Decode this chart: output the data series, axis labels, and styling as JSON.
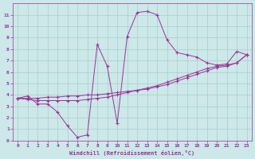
{
  "xlabel": "Windchill (Refroidissement éolien,°C)",
  "background_color": "#cce8e8",
  "grid_color": "#aacccc",
  "line_color": "#993399",
  "xlim": [
    -0.5,
    23.5
  ],
  "ylim": [
    0,
    12
  ],
  "xticks": [
    0,
    1,
    2,
    3,
    4,
    5,
    6,
    7,
    8,
    9,
    10,
    11,
    12,
    13,
    14,
    15,
    16,
    17,
    18,
    19,
    20,
    21,
    22,
    23
  ],
  "yticks": [
    0,
    1,
    2,
    3,
    4,
    5,
    6,
    7,
    8,
    9,
    10,
    11
  ],
  "line1_x": [
    0,
    1,
    2,
    3,
    4,
    5,
    6,
    7,
    8,
    9,
    10,
    11,
    12,
    13,
    14,
    15,
    16,
    17,
    18,
    19,
    20,
    21,
    22,
    23
  ],
  "line1_y": [
    3.7,
    3.9,
    3.2,
    3.2,
    2.5,
    1.3,
    0.3,
    0.5,
    8.4,
    6.5,
    1.5,
    9.1,
    11.2,
    11.3,
    11.0,
    8.8,
    7.7,
    7.5,
    7.3,
    6.8,
    6.6,
    6.7,
    7.8,
    7.5
  ],
  "line2_x": [
    0,
    1,
    2,
    3,
    4,
    5,
    6,
    7,
    8,
    9,
    10,
    11,
    12,
    13,
    14,
    15,
    16,
    17,
    18,
    19,
    20,
    21,
    22,
    23
  ],
  "line2_y": [
    3.7,
    3.7,
    3.7,
    3.8,
    3.8,
    3.9,
    3.9,
    4.0,
    4.0,
    4.1,
    4.2,
    4.3,
    4.4,
    4.5,
    4.7,
    4.9,
    5.2,
    5.5,
    5.8,
    6.1,
    6.4,
    6.5,
    6.8,
    7.5
  ],
  "line3_x": [
    0,
    1,
    2,
    3,
    4,
    5,
    6,
    7,
    8,
    9,
    10,
    11,
    12,
    13,
    14,
    15,
    16,
    17,
    18,
    19,
    20,
    21,
    22,
    23
  ],
  "line3_y": [
    3.7,
    3.6,
    3.5,
    3.5,
    3.5,
    3.5,
    3.5,
    3.6,
    3.7,
    3.8,
    4.0,
    4.2,
    4.4,
    4.6,
    4.8,
    5.1,
    5.4,
    5.7,
    6.0,
    6.3,
    6.5,
    6.6,
    6.8,
    7.5
  ]
}
